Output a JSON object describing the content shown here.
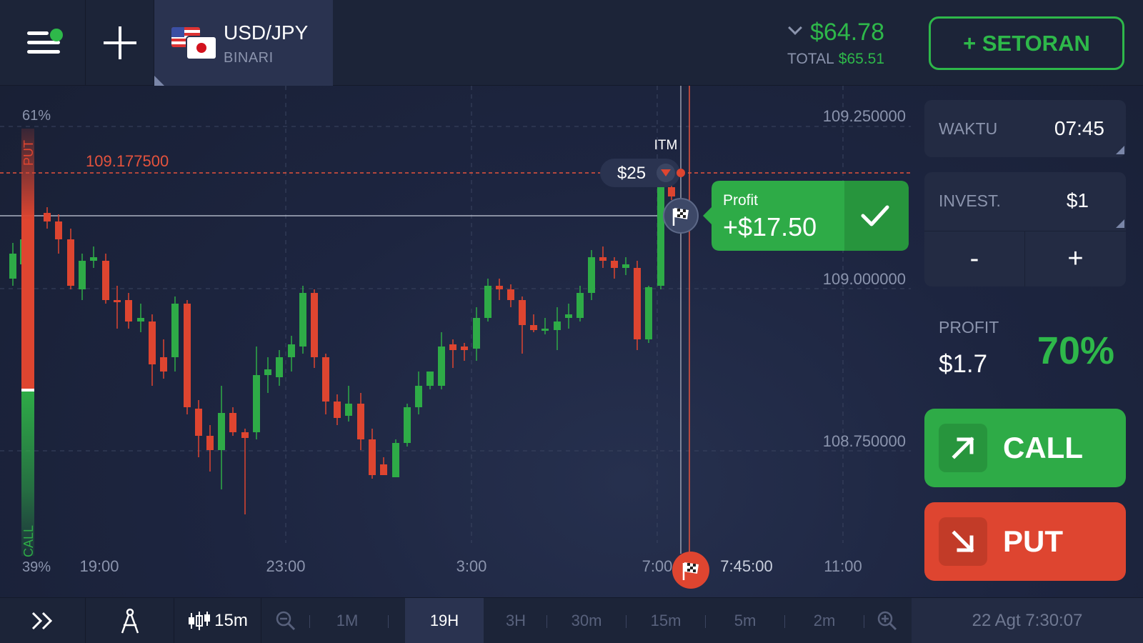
{
  "header": {
    "asset_name": "USD/JPY",
    "asset_type": "BINARI",
    "balance": "$64.78",
    "total_label": "TOTAL",
    "total_value": "$65.51",
    "deposit_label": "+ SETORAN"
  },
  "chart": {
    "price_labels": [
      "109.250000",
      "109.000000",
      "108.750000"
    ],
    "strike_price": "109.177500",
    "time_labels": [
      "19:00",
      "23:00",
      "3:00",
      "7:00",
      "7:45:00",
      "11:00"
    ],
    "sentiment_top": "61%",
    "sentiment_bottom": "39%",
    "sentiment_put_label": "PUT",
    "sentiment_call_label": "CALL",
    "sentiment_put_ratio": 0.61,
    "itm_label": "ITM",
    "deal_amount": "$25",
    "profit_popup_title": "Profit",
    "profit_popup_value": "+$17.50",
    "colors": {
      "up": "#2eab47",
      "down": "#de4530",
      "strike": "#e5533d"
    }
  },
  "panel": {
    "time_label": "WAKTU",
    "time_value": "07:45",
    "invest_label": "INVEST.",
    "invest_value": "$1",
    "minus_label": "-",
    "plus_label": "+",
    "profit_label": "PROFIT",
    "profit_amount": "$1.7",
    "profit_percent": "70%",
    "call_label": "CALL",
    "put_label": "PUT"
  },
  "bottombar": {
    "chart_type_label": "15m",
    "timeframes": [
      "1M",
      "19H",
      "3H",
      "30m",
      "15m",
      "5m",
      "2m"
    ],
    "active_timeframe": "19H",
    "datetime": "22 Agt 7:30:07"
  }
}
